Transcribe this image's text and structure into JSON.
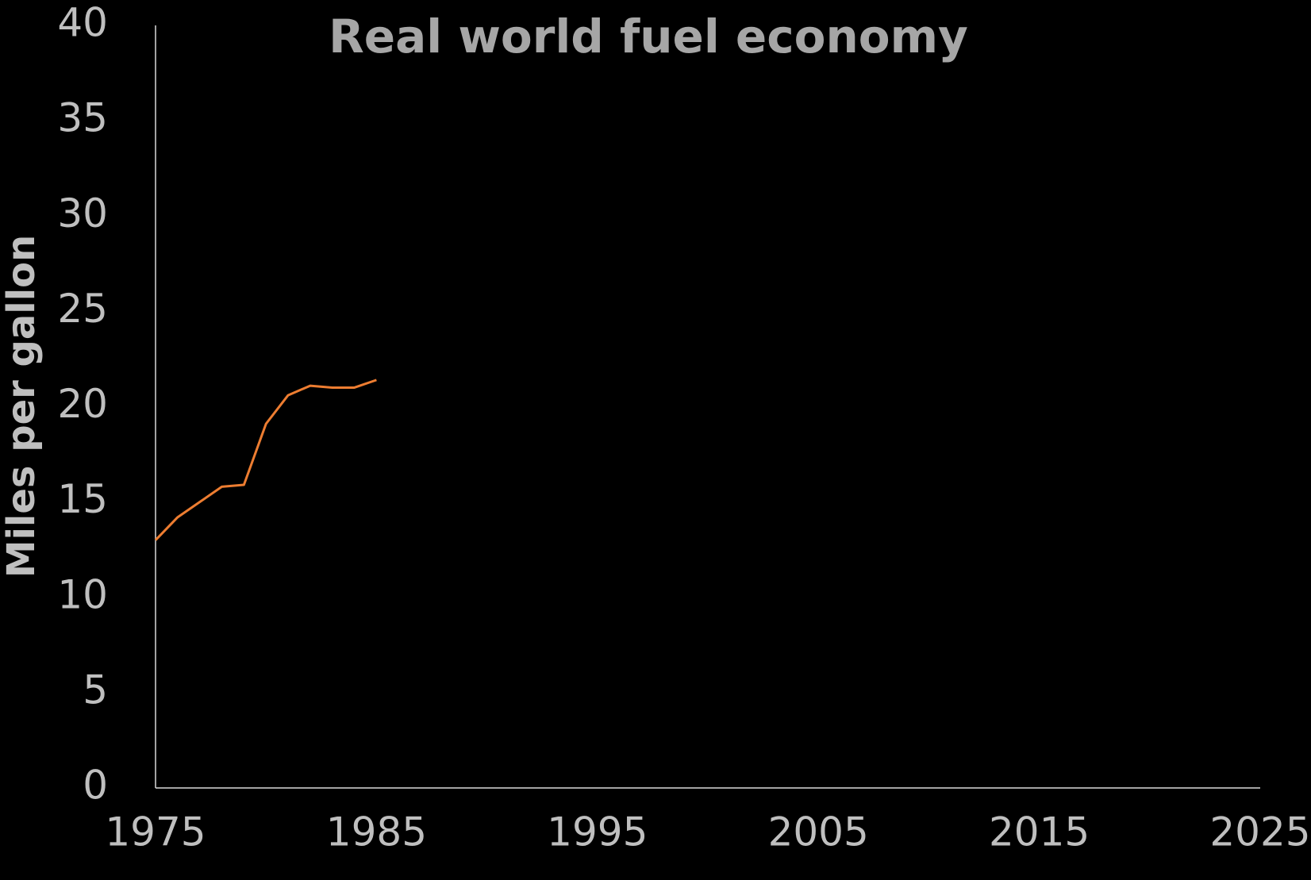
{
  "chart_data": {
    "type": "line",
    "title": "Real world fuel economy",
    "ylabel": "Miles per gallon",
    "x": [
      1975,
      1976,
      1977,
      1978,
      1979,
      1980,
      1981,
      1982,
      1983,
      1984,
      1985
    ],
    "series": [
      {
        "name": "Real world fuel economy",
        "color": "#ed7d31",
        "values": [
          13.0,
          14.2,
          15.0,
          15.8,
          15.9,
          19.1,
          20.6,
          21.1,
          21.0,
          21.0,
          21.4
        ]
      }
    ],
    "xlim": [
      1975,
      2025
    ],
    "xticks": [
      1975,
      1985,
      1995,
      2005,
      2015,
      2025
    ],
    "ylim": [
      0,
      40
    ],
    "yticks": [
      0,
      5,
      10,
      15,
      20,
      25,
      30,
      35,
      40
    ],
    "grid": false
  }
}
